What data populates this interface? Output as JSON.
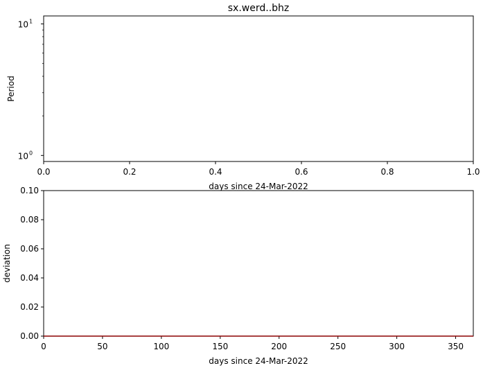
{
  "chart_data": [
    {
      "type": "line",
      "title": "sx.werd..bhz",
      "xlabel": "days since 24-Mar-2022",
      "ylabel": "Period",
      "xlim": [
        0,
        1
      ],
      "ylim": [
        0.9,
        11.5
      ],
      "yscale": "log",
      "x_ticks": [
        "0.0",
        "0.2",
        "0.4",
        "0.6",
        "0.8",
        "1.0"
      ],
      "y_ticks": [
        {
          "value": 1,
          "base": "10",
          "exp": "0"
        },
        {
          "value": 10,
          "base": "10",
          "exp": "1"
        }
      ],
      "series": [],
      "grid": false
    },
    {
      "type": "line",
      "title": "",
      "xlabel": "days since 24-Mar-2022",
      "ylabel": "deviation",
      "xlim": [
        0,
        365
      ],
      "ylim": [
        0,
        0.1
      ],
      "x_ticks": [
        "0",
        "50",
        "100",
        "150",
        "200",
        "250",
        "300",
        "350"
      ],
      "y_ticks": [
        "0.00",
        "0.02",
        "0.04",
        "0.06",
        "0.08",
        "0.10"
      ],
      "series": [
        {
          "color": "#8b0000",
          "x": [
            0,
            365
          ],
          "y": [
            0,
            0
          ]
        }
      ],
      "grid": false
    }
  ]
}
